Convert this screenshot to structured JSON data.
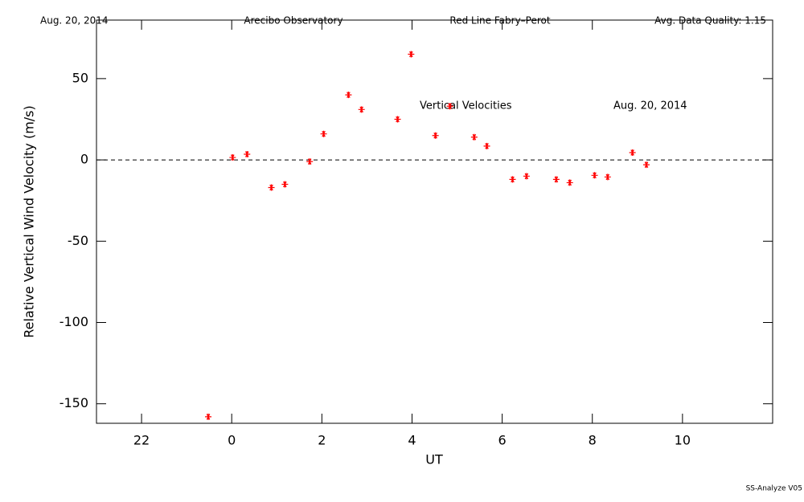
{
  "chart_data": {
    "type": "scatter",
    "header": [
      "Aug. 20, 2014",
      "Arecibo Observatory",
      "Red Line Fabry–Perot",
      "Avg. Data Quality: 1.15"
    ],
    "annotations": [
      "Vertical Velocities",
      "Aug. 20, 2014"
    ],
    "footer": "SS-Analyze V05",
    "xlabel": "UT",
    "ylabel": "Relative Vertical Wind Velocity (m/s)",
    "x": [
      -0.52,
      0.02,
      0.34,
      0.88,
      1.18,
      1.73,
      2.04,
      2.59,
      2.88,
      3.68,
      3.98,
      4.52,
      4.84,
      5.38,
      5.66,
      6.23,
      6.54,
      7.2,
      7.5,
      8.05,
      8.34,
      8.89,
      9.2
    ],
    "series": [
      {
        "name": "Vertical Velocities",
        "color": "#ff0000",
        "values": [
          -158,
          1.5,
          3.5,
          -17,
          -15,
          -1,
          16,
          40,
          31,
          25,
          65,
          15,
          33,
          14,
          8.5,
          -12,
          -10,
          -12,
          -14,
          -9.5,
          -10.5,
          4.5,
          -3
        ]
      }
    ],
    "xlim": [
      -3,
      12
    ],
    "xticks": [
      {
        "value": -2,
        "label": "22"
      },
      0,
      2,
      4,
      6,
      8,
      10
    ],
    "ylim": [
      -162,
      86
    ],
    "yticks": [
      -150,
      -100,
      -50,
      0,
      50
    ],
    "reference_line": 0
  }
}
